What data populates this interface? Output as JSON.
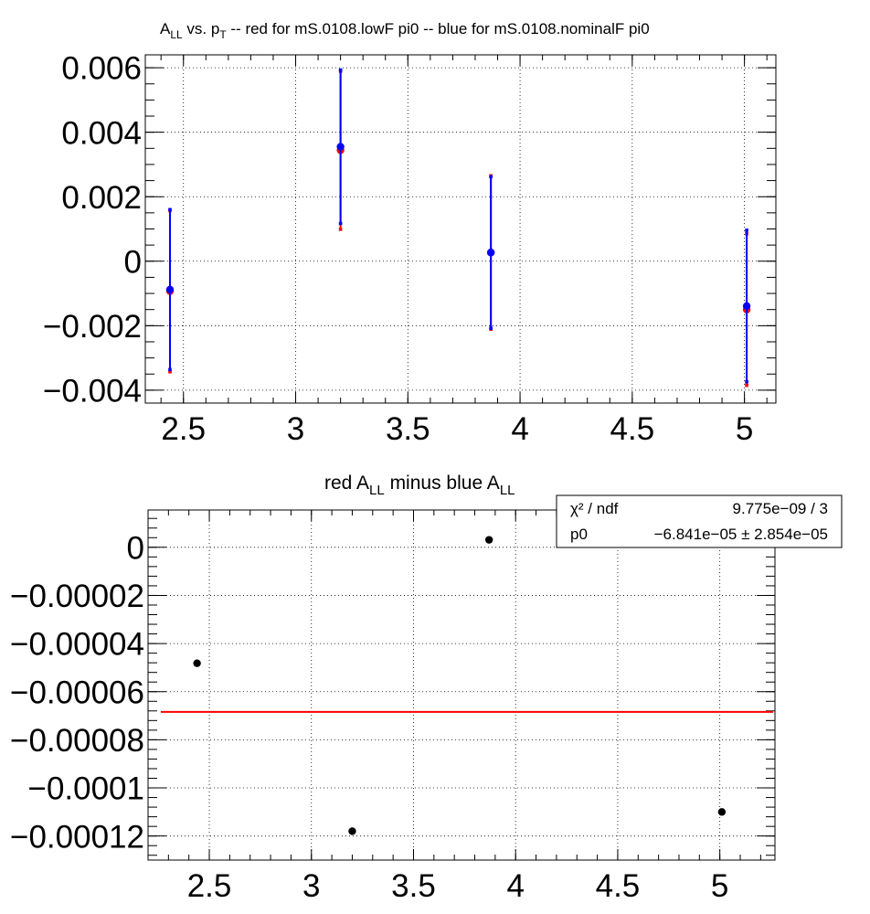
{
  "chart_data": [
    {
      "type": "scatter",
      "title": "A_LL vs. p_T -- red for mS.0108.lowF pi0 -- blue for mS.0108.nominalF pi0",
      "title_parts": {
        "a": "A",
        "a_sub": "LL",
        "vs": " vs. p",
        "p_sub": "T",
        "rest": " -- red for mS.0108.lowF pi0 -- blue for mS.0108.nominalF pi0"
      },
      "xlim": [
        2.33,
        5.14
      ],
      "ylim": [
        -0.0044,
        0.0064
      ],
      "grid": true,
      "x_ticks": [
        2.5,
        3,
        3.5,
        4,
        4.5,
        5
      ],
      "x_tick_labels": [
        "2.5",
        "3",
        "3.5",
        "4",
        "4.5",
        "5"
      ],
      "y_ticks": [
        -0.004,
        -0.002,
        0,
        0.002,
        0.004,
        0.006
      ],
      "y_tick_labels": [
        "−0.004",
        "−0.002",
        "0",
        "0.002",
        "0.004",
        "0.006"
      ],
      "series": [
        {
          "color": "#ff0000",
          "x": [
            2.44,
            3.2,
            3.87,
            5.01
          ],
          "y": [
            -0.00093,
            0.00344,
            0.00027,
            -0.0015
          ],
          "err": [
            0.0025,
            0.00245,
            0.00238,
            0.00235
          ]
        },
        {
          "color": "#0000ff",
          "x": [
            2.44,
            3.2,
            3.87,
            5.01
          ],
          "y": [
            -0.00088,
            0.00355,
            0.00027,
            -0.00139
          ],
          "err": [
            0.00248,
            0.00238,
            0.00235,
            0.00235
          ]
        }
      ]
    },
    {
      "type": "scatter",
      "title": "red A_LL minus blue A_LL",
      "title_parts": {
        "a": "red A",
        "a_sub": "LL",
        "mid": " minus blue A",
        "b_sub": "LL"
      },
      "xlim": [
        2.2,
        5.27
      ],
      "ylim": [
        -0.00013,
        1.55e-05
      ],
      "grid": true,
      "x_ticks": [
        2.5,
        3,
        3.5,
        4,
        4.5,
        5
      ],
      "x_tick_labels": [
        "2.5",
        "3",
        "3.5",
        "4",
        "4.5",
        "5"
      ],
      "y_ticks": [
        -0.00012,
        -0.0001,
        -8e-05,
        -6e-05,
        -4e-05,
        -2e-05,
        0
      ],
      "y_tick_labels": [
        "−0.00012",
        "−0.0001",
        "−0.00008",
        "−0.00006",
        "−0.00004",
        "−0.00002",
        "0"
      ],
      "series": [
        {
          "color": "#000000",
          "x": [
            2.44,
            3.2,
            3.87,
            5.01
          ],
          "y": [
            -4.82e-05,
            -0.000118,
            3.1e-06,
            -0.00011
          ]
        }
      ],
      "fit_line": {
        "color": "#ff0000",
        "y": -6.841e-05
      },
      "stats": {
        "chi2_label": "χ² / ndf",
        "chi2_value": "9.775e−09 / 3",
        "p0_label": "p0",
        "p0_value": "−6.841e−05 ± 2.854e−05"
      }
    }
  ]
}
